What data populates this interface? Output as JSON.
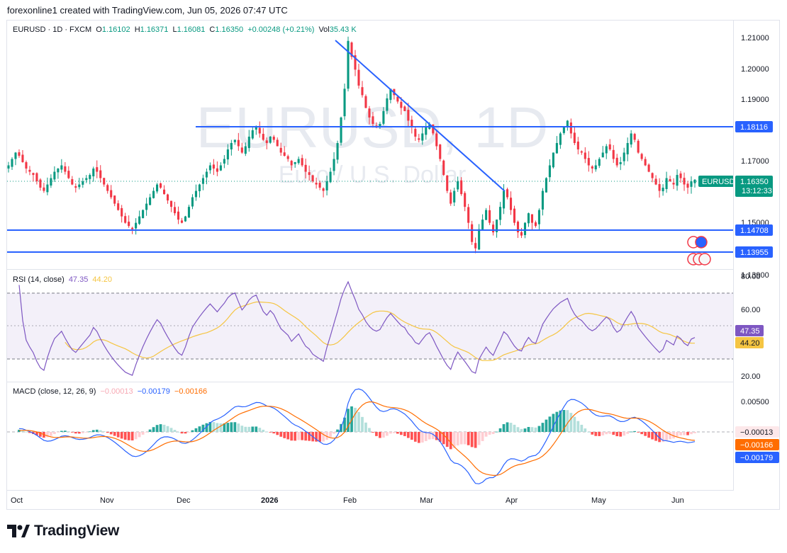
{
  "header": {
    "credit": "forexonline1 created with TradingView.com, Jun 05, 2026 07:47 UTC"
  },
  "legend": {
    "symbol": "EURUSD · 1D · FXCM",
    "o_label": "O",
    "o_value": "1.16102",
    "h_label": "H",
    "h_value": "1.16371",
    "l_label": "L",
    "l_value": "1.16081",
    "c_label": "C",
    "c_value": "1.16350",
    "change": "+0.00248 (+0.21%)",
    "vol_label": "Vol",
    "vol_value": "35.43 K"
  },
  "watermark": {
    "title": "EURUSD, 1D",
    "subtitle": "Euro / U.S. Dollar"
  },
  "rsi_legend": {
    "label": "RSI (14, close)",
    "rsi": "47.35",
    "ma": "44.20"
  },
  "macd_legend": {
    "label": "MACD (close, 12, 26, 9)",
    "hist": "−0.00013",
    "macd": "−0.00179",
    "signal": "−0.00166"
  },
  "price_axis": {
    "ticks": [
      "1.21000",
      "1.20000",
      "1.19000",
      "1.17000",
      "1.15000",
      "1.13900"
    ],
    "badges": {
      "level_high": "1.18116",
      "symbol": "EURUSD",
      "last": "1.16350",
      "countdown": "13:12:33",
      "level_mid": "1.14708",
      "level_low": "1.13955"
    }
  },
  "rsi_axis": {
    "ticks": [
      "80.00",
      "60.00",
      "20.00"
    ],
    "badge_rsi": "47.35",
    "badge_ma": "44.20"
  },
  "macd_axis": {
    "ticks": [
      "0.00500"
    ],
    "badge_hist": "−0.00013",
    "badge_signal": "−0.00166",
    "badge_macd": "−0.00179"
  },
  "time_axis": {
    "labels": [
      "Oct",
      "Nov",
      "Dec",
      "2026",
      "Feb",
      "Mar",
      "Apr",
      "May",
      "Jun"
    ]
  },
  "footer": {
    "brand": "TradingView"
  },
  "colors": {
    "up": "#089981",
    "down": "#f23645",
    "line": "#2962ff",
    "rsi": "#7e57c2",
    "rsi_ma": "#f5c542",
    "macd": "#2962ff",
    "signal": "#ff6d00"
  },
  "chart_data": {
    "type": "candlestick",
    "symbol": "EURUSD",
    "interval": "1D",
    "y_range": [
      1.1355,
      1.2125
    ],
    "horizontal_levels": [
      1.18116,
      1.14708,
      1.13955
    ],
    "trendline": {
      "from": [
        "2026-01-27",
        1.209
      ],
      "to": [
        "2026-03-30",
        1.16
      ]
    },
    "last_close": 1.1635,
    "closes": [
      1.168,
      1.17,
      1.172,
      1.171,
      1.169,
      1.167,
      1.166,
      1.165,
      1.163,
      1.161,
      1.16,
      1.162,
      1.164,
      1.166,
      1.167,
      1.168,
      1.166,
      1.164,
      1.162,
      1.161,
      1.162,
      1.163,
      1.164,
      1.165,
      1.167,
      1.166,
      1.164,
      1.162,
      1.16,
      1.158,
      1.156,
      1.154,
      1.152,
      1.15,
      1.149,
      1.148,
      1.15,
      1.152,
      1.154,
      1.156,
      1.158,
      1.16,
      1.162,
      1.161,
      1.159,
      1.157,
      1.155,
      1.153,
      1.151,
      1.15,
      1.152,
      1.155,
      1.158,
      1.16,
      1.162,
      1.164,
      1.166,
      1.168,
      1.167,
      1.166,
      1.168,
      1.17,
      1.173,
      1.175,
      1.176,
      1.174,
      1.172,
      1.174,
      1.177,
      1.179,
      1.18,
      1.178,
      1.176,
      1.175,
      1.177,
      1.176,
      1.174,
      1.172,
      1.171,
      1.17,
      1.168,
      1.169,
      1.17,
      1.168,
      1.166,
      1.165,
      1.163,
      1.162,
      1.161,
      1.16,
      1.163,
      1.166,
      1.17,
      1.175,
      1.183,
      1.192,
      1.207,
      1.202,
      1.198,
      1.193,
      1.19,
      1.186,
      1.183,
      1.181,
      1.18,
      1.181,
      1.185,
      1.189,
      1.192,
      1.19,
      1.188,
      1.186,
      1.185,
      1.182,
      1.18,
      1.177,
      1.176,
      1.178,
      1.18,
      1.181,
      1.178,
      1.174,
      1.17,
      1.165,
      1.16,
      1.156,
      1.16,
      1.163,
      1.159,
      1.155,
      1.15,
      1.144,
      1.142,
      1.148,
      1.151,
      1.154,
      1.15,
      1.147,
      1.151,
      1.155,
      1.16,
      1.158,
      1.154,
      1.15,
      1.147,
      1.146,
      1.15,
      1.153,
      1.15,
      1.149,
      1.154,
      1.16,
      1.164,
      1.168,
      1.172,
      1.175,
      1.178,
      1.18,
      1.182,
      1.178,
      1.175,
      1.173,
      1.172,
      1.17,
      1.168,
      1.167,
      1.168,
      1.17,
      1.172,
      1.174,
      1.173,
      1.17,
      1.168,
      1.169,
      1.172,
      1.175,
      1.178,
      1.176,
      1.172,
      1.17,
      1.168,
      1.166,
      1.164,
      1.162,
      1.16,
      1.161,
      1.164,
      1.163,
      1.162,
      1.165,
      1.164,
      1.162,
      1.161,
      1.163,
      1.1635
    ],
    "rsi": {
      "period": 14,
      "last": 47.35,
      "ma_last": 44.2,
      "bands": [
        70,
        30
      ],
      "ylim": [
        20,
        82
      ]
    },
    "macd": {
      "fast": 12,
      "slow": 26,
      "signal": 9,
      "last_hist": -0.00013,
      "last_macd": -0.00179,
      "last_signal": -0.00166
    }
  }
}
